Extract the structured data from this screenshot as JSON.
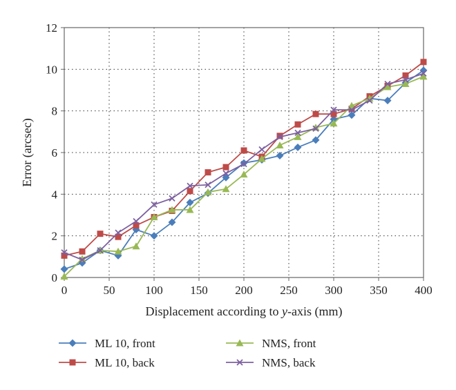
{
  "chart_data": {
    "type": "line",
    "xlabel_parts": [
      "Displacement according to ",
      "y",
      "-axis (mm)"
    ],
    "ylabel": "Error (arcsec)",
    "xlim": [
      0,
      400
    ],
    "ylim": [
      0,
      12
    ],
    "x_ticks": [
      "0",
      "50",
      "100",
      "150",
      "200",
      "250",
      "300",
      "350",
      "400"
    ],
    "y_ticks": [
      "0",
      "2",
      "4",
      "6",
      "8",
      "10",
      "12"
    ],
    "grid": true,
    "legend_position": "bottom",
    "x": [
      0,
      20,
      40,
      60,
      80,
      100,
      120,
      140,
      160,
      180,
      200,
      220,
      240,
      260,
      280,
      300,
      320,
      340,
      360,
      380,
      400
    ],
    "series": [
      {
        "name": "ML 10, front",
        "color": "#4a7ebb",
        "marker": "diamond",
        "values": [
          0.4,
          0.7,
          1.3,
          1.05,
          2.3,
          2.0,
          2.65,
          3.6,
          4.05,
          4.8,
          5.5,
          5.65,
          5.85,
          6.25,
          6.6,
          7.6,
          7.8,
          8.6,
          8.5,
          9.35,
          9.95
        ]
      },
      {
        "name": "ML 10, back",
        "color": "#be4b48",
        "marker": "square",
        "values": [
          1.05,
          1.25,
          2.1,
          1.95,
          2.5,
          2.9,
          3.2,
          4.15,
          5.05,
          5.3,
          6.1,
          5.8,
          6.8,
          7.35,
          7.85,
          7.85,
          8.1,
          8.7,
          9.2,
          9.7,
          10.35
        ]
      },
      {
        "name": "NMS, front",
        "color": "#98b954",
        "marker": "triangle",
        "values": [
          0.05,
          0.9,
          1.3,
          1.25,
          1.5,
          2.9,
          3.25,
          3.25,
          4.1,
          4.25,
          4.95,
          5.7,
          6.35,
          6.75,
          7.2,
          7.4,
          8.25,
          8.6,
          9.15,
          9.3,
          9.65
        ]
      },
      {
        "name": "NMS, back",
        "color": "#7d60a0",
        "marker": "x",
        "values": [
          1.2,
          0.85,
          1.3,
          2.15,
          2.7,
          3.5,
          3.8,
          4.4,
          4.45,
          5.0,
          5.45,
          6.15,
          6.75,
          6.95,
          7.15,
          8.05,
          8.05,
          8.5,
          9.3,
          9.5,
          9.8
        ]
      }
    ]
  }
}
